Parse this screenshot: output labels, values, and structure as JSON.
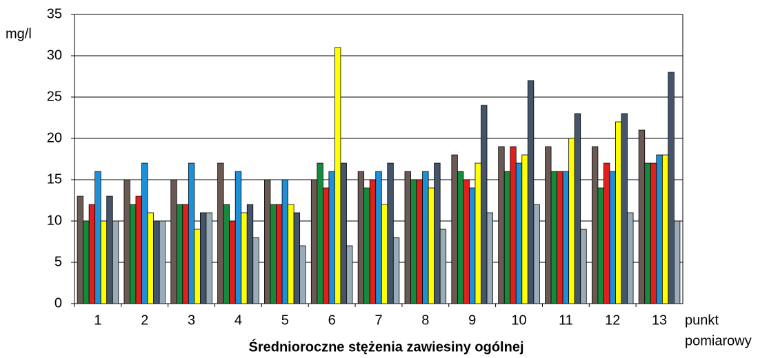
{
  "chart_data": {
    "type": "bar",
    "title": "Średnioroczne stężenia zawiesiny ogólnej",
    "ylabel": "mg/l",
    "xlabel": [
      "punkt",
      "pomiarowy"
    ],
    "categories": [
      "1",
      "2",
      "3",
      "4",
      "5",
      "6",
      "7",
      "8",
      "9",
      "10",
      "11",
      "12",
      "13"
    ],
    "series": [
      {
        "color": "#6b5a53",
        "values": [
          13,
          15,
          15,
          17,
          15,
          15,
          16,
          16,
          18,
          19,
          19,
          19,
          21
        ]
      },
      {
        "color": "#168a3c",
        "values": [
          10,
          12,
          12,
          12,
          12,
          17,
          14,
          15,
          16,
          16,
          16,
          14,
          17
        ]
      },
      {
        "color": "#e0201c",
        "values": [
          12,
          13,
          12,
          10,
          12,
          14,
          15,
          15,
          15,
          19,
          16,
          17,
          17
        ]
      },
      {
        "color": "#1e90d8",
        "values": [
          16,
          17,
          17,
          16,
          15,
          16,
          16,
          16,
          14,
          17,
          16,
          16,
          18
        ]
      },
      {
        "color": "#ffff00",
        "values": [
          10,
          11,
          9,
          11,
          12,
          31,
          12,
          14,
          17,
          18,
          20,
          22,
          18
        ]
      },
      {
        "color": "#44546a",
        "values": [
          13,
          10,
          11,
          12,
          11,
          17,
          17,
          17,
          24,
          27,
          23,
          23,
          28
        ]
      },
      {
        "color": "#9aacb8",
        "values": [
          10,
          10,
          11,
          8,
          7,
          7,
          8,
          9,
          11,
          12,
          9,
          11,
          10
        ]
      }
    ],
    "ylim": [
      0,
      35
    ],
    "yticks": [
      0,
      5,
      10,
      15,
      20,
      25,
      30,
      35
    ],
    "grid": true
  }
}
